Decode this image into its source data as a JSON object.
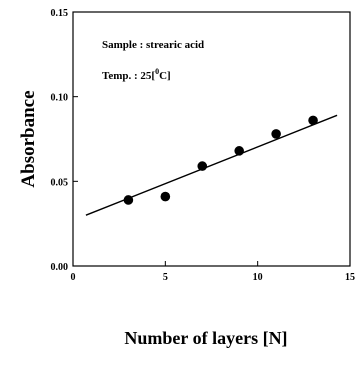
{
  "chart_data": {
    "type": "scatter",
    "xlabel": "Number of layers [N]",
    "ylabel": "Absorbance",
    "xlim": [
      0,
      15
    ],
    "ylim": [
      0.0,
      0.15
    ],
    "x_ticks": [
      {
        "value": 0,
        "label": "0"
      },
      {
        "value": 5,
        "label": "5"
      },
      {
        "value": 10,
        "label": "10"
      },
      {
        "value": 15,
        "label": "15"
      }
    ],
    "y_ticks": [
      {
        "value": 0.0,
        "label": "0.00"
      },
      {
        "value": 0.05,
        "label": "0.05"
      },
      {
        "value": 0.1,
        "label": "0.10"
      },
      {
        "value": 0.15,
        "label": "0.15"
      }
    ],
    "points": [
      {
        "x": 3,
        "y": 0.039
      },
      {
        "x": 5,
        "y": 0.041
      },
      {
        "x": 7,
        "y": 0.059
      },
      {
        "x": 9,
        "y": 0.068
      },
      {
        "x": 11,
        "y": 0.078
      },
      {
        "x": 13,
        "y": 0.086
      }
    ],
    "fit_line": {
      "x": [
        0.7,
        14.3
      ],
      "y": [
        0.03,
        0.089
      ]
    },
    "annotations": {
      "sample": "Sample : strearic acid",
      "temp": "Temp. : 25[",
      "temp_unit_sup": "0",
      "temp_unit": "C]"
    },
    "grid": false,
    "legend": "none"
  }
}
